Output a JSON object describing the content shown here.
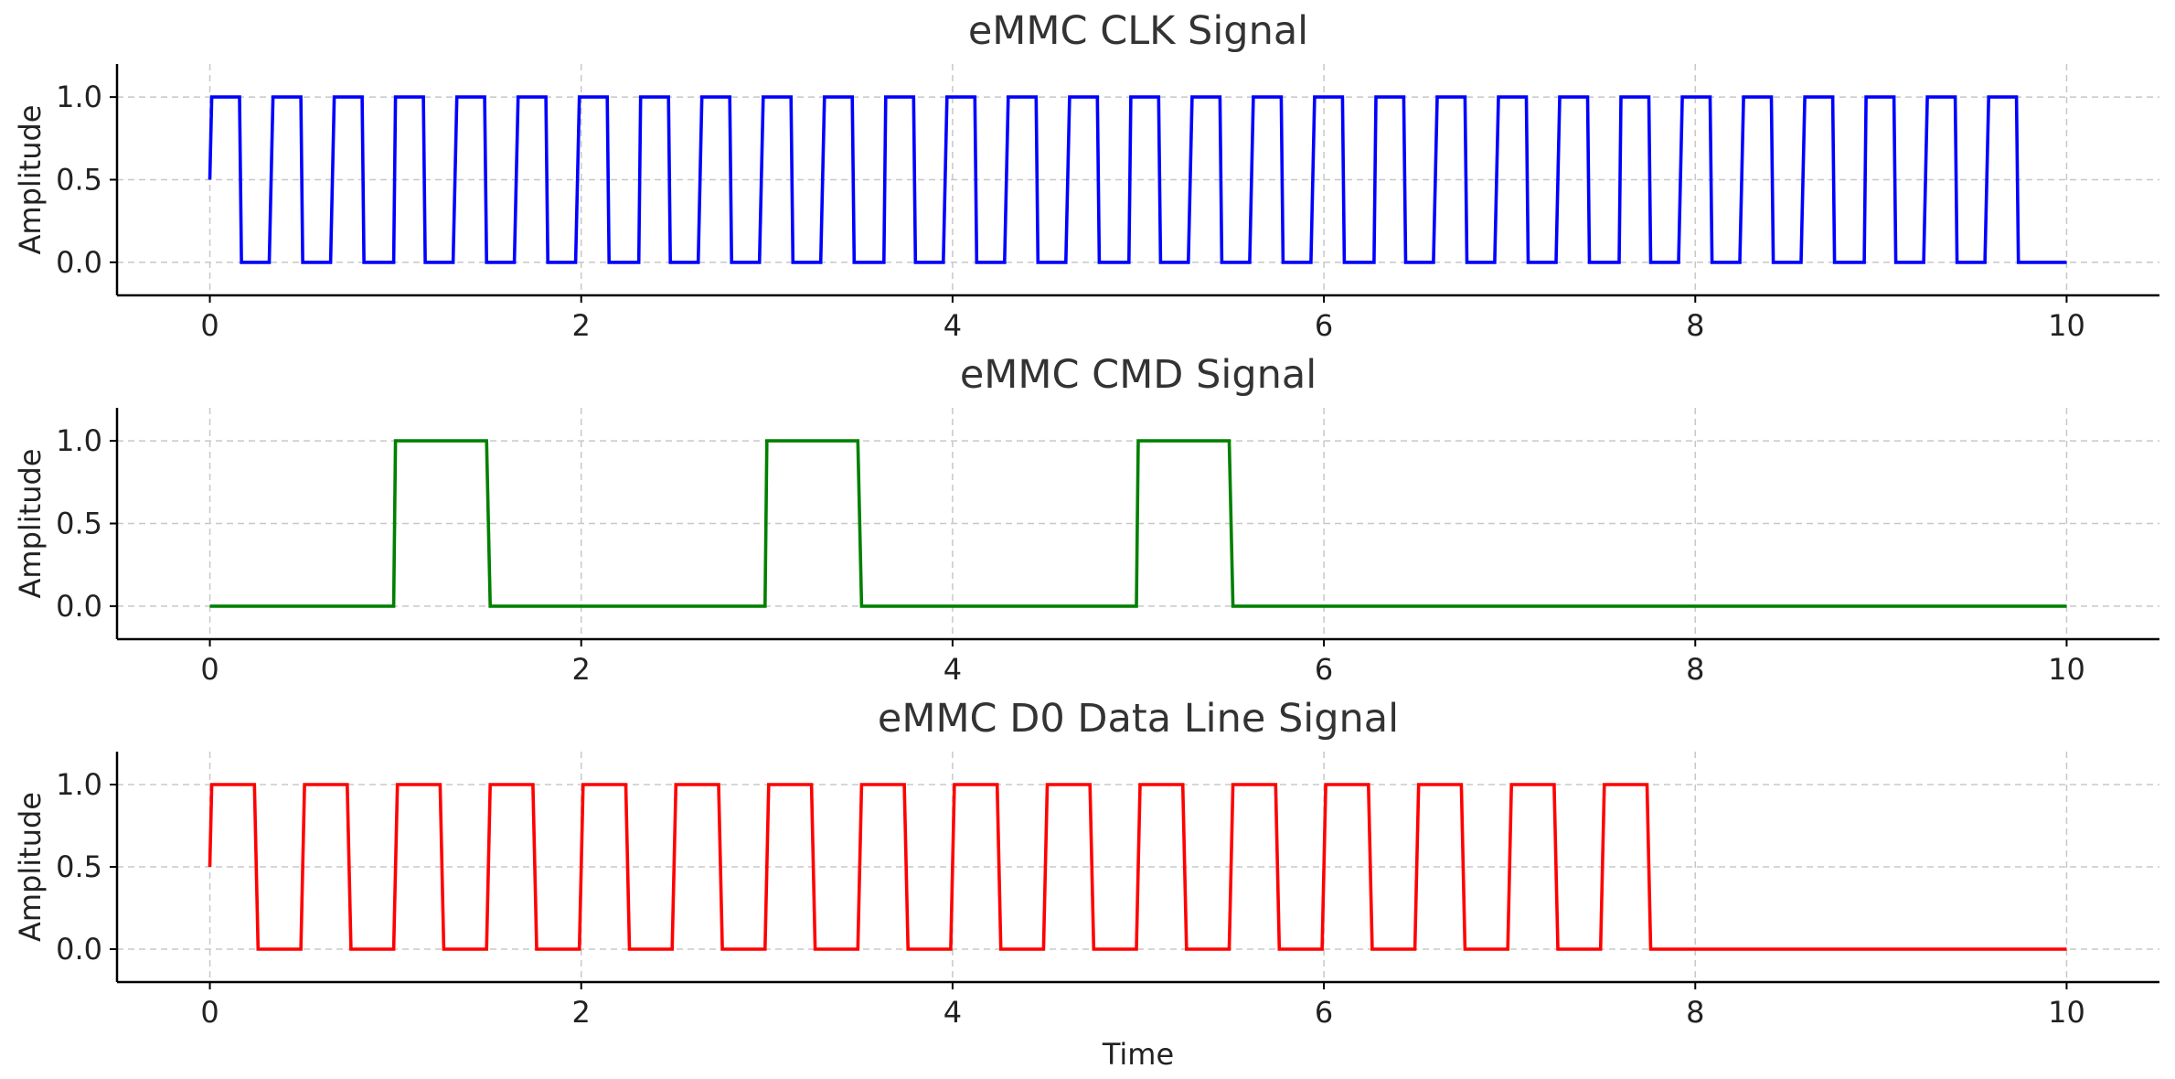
{
  "chart_data": [
    {
      "type": "line",
      "title": "eMMC CLK Signal",
      "xlabel": "",
      "ylabel": "Amplitude",
      "xlim": [
        -0.5,
        10.5
      ],
      "ylim": [
        -0.2,
        1.2
      ],
      "xticks": [
        0,
        2,
        4,
        6,
        8,
        10
      ],
      "yticks": [
        0.0,
        0.5,
        1.0
      ],
      "xtick_labels": [
        "0",
        "2",
        "4",
        "6",
        "8",
        "10"
      ],
      "ytick_labels": [
        "0.0",
        "0.5",
        "1.0"
      ],
      "grid": true,
      "color": "#0000ff",
      "series": [
        {
          "x": [
            0,
            0.01,
            0.16,
            0.17,
            0.32,
            0.34,
            0.49,
            0.5,
            0.65,
            0.67,
            0.82,
            0.83,
            0.99,
            1.0,
            1.15,
            1.16,
            1.31,
            1.33,
            1.48,
            1.49,
            1.64,
            1.66,
            1.81,
            1.82,
            1.97,
            1.99,
            2.14,
            2.15,
            2.31,
            2.32,
            2.47,
            2.48,
            2.63,
            2.65,
            2.8,
            2.81,
            2.96,
            2.98,
            3.13,
            3.14,
            3.29,
            3.31,
            3.46,
            3.47,
            3.63,
            3.64,
            3.79,
            3.8,
            3.95,
            3.97,
            4.12,
            4.13,
            4.28,
            4.3,
            4.45,
            4.46,
            4.61,
            4.63,
            4.78,
            4.79,
            4.95,
            4.96,
            5.11,
            5.12,
            5.27,
            5.29,
            5.44,
            5.45,
            5.6,
            5.62,
            5.77,
            5.78,
            5.93,
            5.95,
            6.1,
            6.11,
            6.27,
            6.28,
            6.43,
            6.44,
            6.59,
            6.61,
            6.76,
            6.77,
            6.92,
            6.94,
            7.09,
            7.1,
            7.25,
            7.27,
            7.42,
            7.43,
            7.59,
            7.6,
            7.75,
            7.76,
            7.91,
            7.93,
            8.08,
            8.09,
            8.24,
            8.26,
            8.41,
            8.42,
            8.57,
            8.59,
            8.74,
            8.75,
            8.91,
            8.92,
            9.07,
            9.08,
            9.23,
            9.25,
            9.4,
            9.41,
            9.56,
            9.58,
            9.73,
            9.74,
            9.89,
            9.91,
            10.0
          ],
          "y": [
            0.5,
            1,
            1,
            0,
            0,
            1,
            1,
            0,
            0,
            1,
            1,
            0,
            0,
            1,
            1,
            0,
            0,
            1,
            1,
            0,
            0,
            1,
            1,
            0,
            0,
            1,
            1,
            0,
            0,
            1,
            1,
            0,
            0,
            1,
            1,
            0,
            0,
            1,
            1,
            0,
            0,
            1,
            1,
            0,
            0,
            1,
            1,
            0,
            0,
            1,
            1,
            0,
            0,
            1,
            1,
            0,
            0,
            1,
            1,
            0,
            0,
            1,
            1,
            0,
            0,
            1,
            1,
            0,
            0,
            1,
            1,
            0,
            0,
            1,
            1,
            0,
            0,
            1,
            1,
            0,
            0,
            1,
            1,
            0,
            0,
            1,
            1,
            0,
            0,
            1,
            1,
            0,
            0,
            1,
            1,
            0,
            0,
            1,
            1,
            0,
            0,
            1,
            1,
            0,
            0,
            1,
            1,
            0,
            0,
            1,
            1,
            0,
            0,
            1,
            1,
            0,
            0,
            1,
            1,
            0,
            0,
            0,
            0
          ]
        }
      ]
    },
    {
      "type": "line",
      "title": "eMMC CMD Signal",
      "xlabel": "",
      "ylabel": "Amplitude",
      "xlim": [
        -0.5,
        10.5
      ],
      "ylim": [
        -0.2,
        1.2
      ],
      "xticks": [
        0,
        2,
        4,
        6,
        8,
        10
      ],
      "yticks": [
        0.0,
        0.5,
        1.0
      ],
      "xtick_labels": [
        "0",
        "2",
        "4",
        "6",
        "8",
        "10"
      ],
      "ytick_labels": [
        "0.0",
        "0.5",
        "1.0"
      ],
      "grid": true,
      "color": "#008000",
      "series": [
        {
          "x": [
            0,
            0.99,
            1.0,
            1.49,
            1.51,
            2.99,
            3.0,
            3.49,
            3.51,
            4.99,
            5.0,
            5.49,
            5.51,
            10.0
          ],
          "y": [
            0,
            0,
            1,
            1,
            0,
            0,
            1,
            1,
            0,
            0,
            1,
            1,
            0,
            0
          ]
        }
      ]
    },
    {
      "type": "line",
      "title": "eMMC D0 Data Line Signal",
      "xlabel": "Time",
      "ylabel": "Amplitude",
      "xlim": [
        -0.5,
        10.5
      ],
      "ylim": [
        -0.2,
        1.2
      ],
      "xticks": [
        0,
        2,
        4,
        6,
        8,
        10
      ],
      "yticks": [
        0.0,
        0.5,
        1.0
      ],
      "xtick_labels": [
        "0",
        "2",
        "4",
        "6",
        "8",
        "10"
      ],
      "ytick_labels": [
        "0.0",
        "0.5",
        "1.0"
      ],
      "grid": true,
      "color": "#ff0000",
      "series": [
        {
          "x": [
            0,
            0.01,
            0.24,
            0.26,
            0.49,
            0.51,
            0.74,
            0.76,
            0.99,
            1.01,
            1.24,
            1.26,
            1.49,
            1.51,
            1.74,
            1.76,
            1.99,
            2.01,
            2.24,
            2.26,
            2.49,
            2.51,
            2.74,
            2.76,
            2.99,
            3.01,
            3.24,
            3.26,
            3.49,
            3.51,
            3.74,
            3.76,
            3.99,
            4.01,
            4.24,
            4.26,
            4.49,
            4.51,
            4.74,
            4.76,
            4.99,
            5.01,
            5.24,
            5.26,
            5.49,
            5.51,
            5.74,
            5.76,
            5.99,
            6.01,
            6.24,
            6.26,
            6.49,
            6.51,
            6.74,
            6.76,
            6.99,
            7.01,
            7.24,
            7.26,
            7.49,
            7.51,
            7.74,
            7.76,
            10.0
          ],
          "y": [
            0.5,
            1,
            1,
            0,
            0,
            1,
            1,
            0,
            0,
            1,
            1,
            0,
            0,
            1,
            1,
            0,
            0,
            1,
            1,
            0,
            0,
            1,
            1,
            0,
            0,
            1,
            1,
            0,
            0,
            1,
            1,
            0,
            0,
            1,
            1,
            0,
            0,
            1,
            1,
            0,
            0,
            1,
            1,
            0,
            0,
            1,
            1,
            0,
            0,
            1,
            1,
            0,
            0,
            1,
            1,
            0,
            0,
            1,
            1,
            0,
            0,
            1,
            1,
            0,
            0
          ]
        }
      ]
    }
  ]
}
